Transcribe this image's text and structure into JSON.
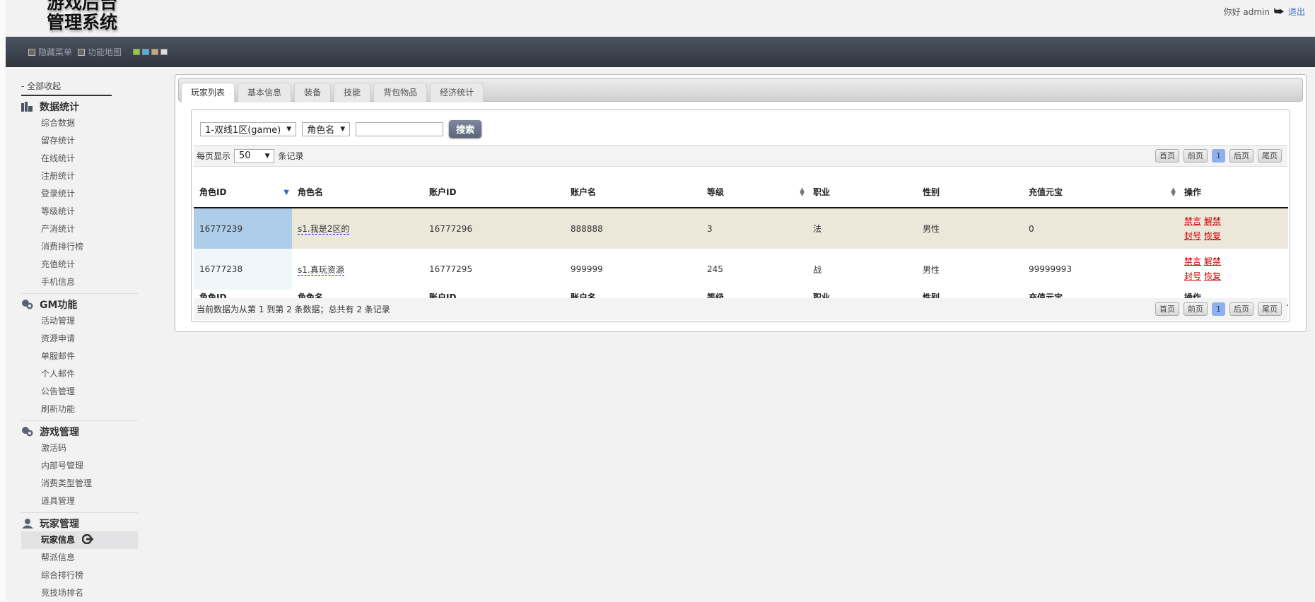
{
  "header": {
    "logo_line1": "游戏后台",
    "logo_line2": "管理系统",
    "greeting": "你好 admin",
    "logout": "退出"
  },
  "navbar": {
    "hide_menu": "隐藏菜单",
    "func_map": "功能地图",
    "swatches": [
      "#9acd32",
      "#4ab3e6",
      "#c8a878",
      "#dddddd"
    ]
  },
  "sidebar": {
    "collapse_all": "- 全部收起",
    "sections": [
      {
        "title": "数据统计",
        "icon": "bar-chart-icon",
        "items": [
          "综合数据",
          "留存统计",
          "在线统计",
          "注册统计",
          "登录统计",
          "等级统计",
          "产消统计",
          "消费排行榜",
          "充值统计",
          "手机信息"
        ]
      },
      {
        "title": "GM功能",
        "icon": "toggle-icon",
        "items": [
          "活动管理",
          "资源申请",
          "单服邮件",
          "个人邮件",
          "公告管理",
          "刷新功能"
        ]
      },
      {
        "title": "游戏管理",
        "icon": "toggle-icon",
        "items": [
          "激活码",
          "内部号管理",
          "消费类型管理",
          "道具管理"
        ]
      },
      {
        "title": "玩家管理",
        "icon": "user-icon",
        "items": [
          "玩家信息",
          "帮派信息",
          "综合排行榜",
          "竞技场排名"
        ],
        "active": "玩家信息"
      }
    ]
  },
  "tabs": [
    "玩家列表",
    "基本信息",
    "装备",
    "技能",
    "背包物品",
    "经济统计"
  ],
  "search": {
    "server": "1-双线1区(game)",
    "field": "角色名",
    "query": "",
    "button": "搜索"
  },
  "toolbar": {
    "per_page_prefix": "每页显示",
    "per_page": "50",
    "per_page_suffix": "条记录"
  },
  "pager": {
    "first": "首页",
    "prev": "前页",
    "current": "1",
    "next": "后页",
    "last": "尾页"
  },
  "table": {
    "columns": [
      "角色ID",
      "角色名",
      "账户ID",
      "账户名",
      "等级",
      "职业",
      "性别",
      "充值元宝",
      "操作"
    ],
    "rows": [
      {
        "role_id": "16777239",
        "role_name": "s1.我是2区的",
        "account_id": "16777296",
        "account_name": "888888",
        "level": "3",
        "class": "法",
        "gender": "男性",
        "recharge": "0"
      },
      {
        "role_id": "16777238",
        "role_name": "s1.真玩资源",
        "account_id": "16777295",
        "account_name": "999999",
        "level": "245",
        "class": "战",
        "gender": "男性",
        "recharge": "99999993"
      }
    ],
    "ops": {
      "mute": "禁言",
      "unban": "解禁",
      "ban": "封号",
      "restore": "恢复"
    }
  },
  "info": "当前数据为从第 1 到第 2 条数据；总共有 2 条记录"
}
